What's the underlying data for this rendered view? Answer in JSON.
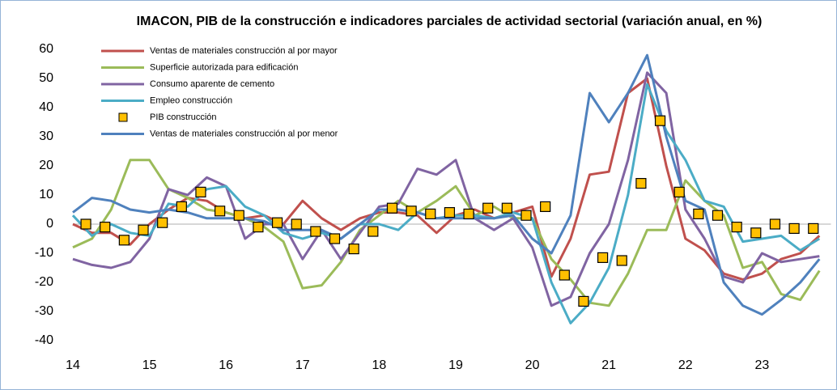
{
  "chart_data": {
    "type": "line",
    "title": "IMACON, PIB de la construcción e indicadores parciales de actividad sectorial (variación anual, en %)",
    "x": [
      14,
      14.25,
      14.5,
      14.75,
      15,
      15.25,
      15.5,
      15.75,
      16,
      16.25,
      16.5,
      16.75,
      17,
      17.25,
      17.5,
      17.75,
      18,
      18.25,
      18.5,
      18.75,
      19,
      19.25,
      19.5,
      19.75,
      20,
      20.25,
      20.5,
      20.75,
      21,
      21.25,
      21.5,
      21.75,
      22,
      22.25,
      22.5,
      22.75,
      23,
      23.25,
      23.5,
      23.75
    ],
    "series": [
      {
        "name": "Ventas de materiales construcción al por mayor",
        "color": "#c0504d",
        "values": [
          0,
          -3,
          -3,
          -7,
          0,
          5,
          9,
          8,
          4,
          2,
          3,
          0,
          8,
          2,
          -2,
          2,
          4,
          4,
          3,
          -3,
          3,
          5,
          2,
          4,
          6,
          -18,
          -5,
          17,
          18,
          45,
          50,
          20,
          -5,
          -9,
          -17,
          -19,
          -17,
          -12,
          -10,
          -4
        ]
      },
      {
        "name": "Superficie autorizada para edificación",
        "color": "#9bbb59",
        "values": [
          -8,
          -5,
          5,
          22,
          22,
          12,
          9,
          5,
          4,
          2,
          -1,
          -6,
          -22,
          -21,
          -13,
          -2,
          3,
          8,
          4,
          8,
          13,
          3,
          6,
          2,
          2,
          -12,
          -19,
          -27,
          -28,
          -17,
          -2,
          -2,
          15,
          8,
          3,
          -15,
          -13,
          -24,
          -26,
          -16
        ]
      },
      {
        "name": "Consumo aparente de cemento",
        "color": "#8064a2",
        "values": [
          -12,
          -14,
          -15,
          -13,
          -5,
          12,
          10,
          16,
          13,
          -5,
          0,
          0,
          -12,
          -2,
          -12,
          -3,
          6,
          7,
          19,
          17,
          22,
          2,
          -2,
          2,
          -8,
          -28,
          -25,
          -10,
          0,
          22,
          52,
          45,
          5,
          -5,
          -18,
          -20,
          -10,
          -13,
          -12,
          -11
        ]
      },
      {
        "name": "Empleo construcción",
        "color": "#4bacc6",
        "values": [
          3,
          -4,
          0,
          -3,
          -4,
          7,
          6,
          12,
          13,
          6,
          3,
          -3,
          -5,
          -3,
          -5,
          0,
          0,
          -2,
          4,
          2,
          3,
          3,
          2,
          4,
          2,
          -20,
          -34,
          -27,
          -15,
          10,
          48,
          32,
          22,
          8,
          6,
          -6,
          -5,
          -4,
          -9,
          -5
        ]
      },
      {
        "name": "PIB construcción",
        "color": "#ffc000",
        "type": "scatter",
        "x": [
          14.17,
          14.42,
          14.67,
          14.92,
          15.17,
          15.42,
          15.67,
          15.92,
          16.17,
          16.42,
          16.67,
          16.92,
          17.17,
          17.42,
          17.67,
          17.92,
          18.17,
          18.42,
          18.67,
          18.92,
          19.17,
          19.42,
          19.67,
          19.92,
          20.17,
          20.42,
          20.67,
          20.92,
          21.17,
          21.42,
          21.67,
          21.92,
          22.17,
          22.42,
          22.67,
          22.92,
          23.17,
          23.42,
          23.67
        ],
        "values": [
          0,
          -1,
          -5.5,
          -2,
          0.5,
          6,
          11,
          4.5,
          3,
          -1,
          0.5,
          0,
          -2.5,
          -5,
          -8.5,
          -2.5,
          5.5,
          4.5,
          3.5,
          4,
          3.5,
          5.5,
          5.5,
          3,
          6,
          -17.5,
          -26.5,
          -11.5,
          -12.5,
          14,
          35.5,
          11,
          3.5,
          3,
          -1,
          -3,
          0,
          -1.5,
          -1.5
        ]
      },
      {
        "name": "Ventas de materiales construcción al por menor",
        "color": "#4f81bd",
        "values": [
          4,
          9,
          8,
          5,
          4,
          5,
          4,
          2,
          2,
          2,
          1,
          -2,
          -2,
          -2,
          -5,
          0,
          5,
          5,
          4,
          2,
          2,
          2,
          2,
          3,
          -5,
          -10,
          3,
          45,
          35,
          45,
          58,
          30,
          8,
          5,
          -20,
          -28,
          -31,
          -26,
          -20,
          -12
        ]
      }
    ],
    "xlim": [
      14,
      23.9
    ],
    "xticks": [
      14,
      15,
      16,
      17,
      18,
      19,
      20,
      21,
      22,
      23
    ],
    "ylim": [
      -40,
      60
    ],
    "yticks": [
      -40,
      -30,
      -20,
      -10,
      0,
      10,
      20,
      30,
      40,
      50,
      60
    ]
  }
}
